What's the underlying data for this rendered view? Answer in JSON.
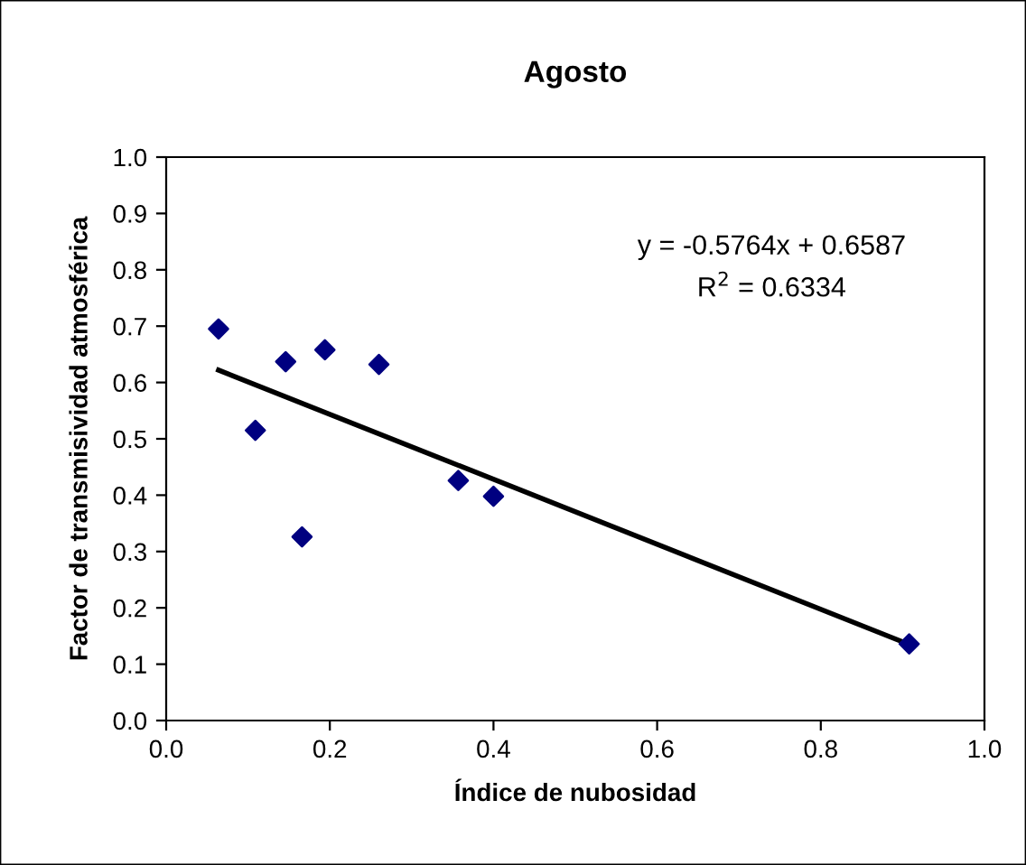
{
  "chart_data": {
    "type": "scatter",
    "title": "Agosto",
    "xlabel": "Índice de nubosidad",
    "ylabel": "Factor de transmisividad atmosférica",
    "series": [
      {
        "color": "#000080",
        "marker": "diamond",
        "x": [
          0.064,
          0.109,
          0.146,
          0.166,
          0.194,
          0.26,
          0.357,
          0.4,
          0.908
        ],
        "values": [
          0.695,
          0.515,
          0.637,
          0.326,
          0.658,
          0.632,
          0.426,
          0.398,
          0.136
        ]
      },
      {
        "type": "line",
        "color": "#000000",
        "marker": "none",
        "x": [
          0.064,
          0.908
        ],
        "values": [
          0.622,
          0.135
        ]
      }
    ],
    "annotations": [
      "y = -0.5764x + 0.6587",
      "R$^{2}$ = 0.6334"
    ],
    "xlim": [
      0.0,
      1.0
    ],
    "ylim": [
      0.0,
      1.0
    ],
    "xticks": [
      {
        "value": 0.0,
        "label": "0.0"
      },
      {
        "value": 0.2,
        "label": "0.2"
      },
      {
        "value": 0.4,
        "label": "0.4"
      },
      {
        "value": 0.6,
        "label": "0.6"
      },
      {
        "value": 0.8,
        "label": "0.8"
      },
      {
        "value": 1.0,
        "label": "1.0"
      }
    ],
    "yticks": [
      {
        "value": 0.0,
        "label": "0.0"
      },
      {
        "value": 0.1,
        "label": "0.1"
      },
      {
        "value": 0.2,
        "label": "0.2"
      },
      {
        "value": 0.3,
        "label": "0.3"
      },
      {
        "value": 0.4,
        "label": "0.4"
      },
      {
        "value": 0.5,
        "label": "0.5"
      },
      {
        "value": 0.6,
        "label": "0.6"
      },
      {
        "value": 0.7,
        "label": "0.7"
      },
      {
        "value": 0.8,
        "label": "0.8"
      },
      {
        "value": 0.9,
        "label": "0.9"
      },
      {
        "value": 1.0,
        "label": "1.0"
      }
    ],
    "grid": false,
    "legend": false
  }
}
